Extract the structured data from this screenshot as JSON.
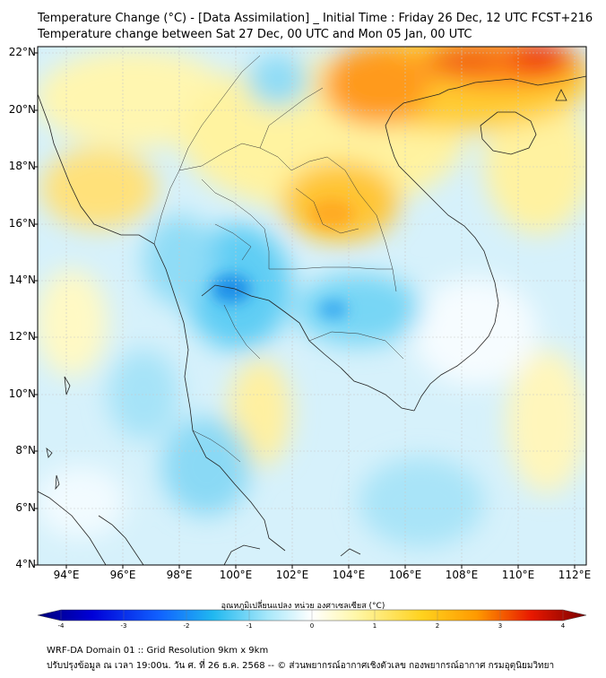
{
  "header": {
    "title_line1": "Temperature Change (°C) - [Data Assimilation] _ Initial Time : Friday 26 Dec, 12 UTC FCST+216",
    "title_line2": "Temperature change between Sat 27 Dec, 00 UTC and Mon 05 Jan, 00 UTC"
  },
  "axes": {
    "lat_labels": [
      "22°N",
      "20°N",
      "18°N",
      "16°N",
      "14°N",
      "12°N",
      "10°N",
      "8°N",
      "6°N",
      "4°N"
    ],
    "lon_labels": [
      "94°E",
      "96°E",
      "98°E",
      "100°E",
      "102°E",
      "104°E",
      "106°E",
      "108°E",
      "110°E",
      "112°E"
    ],
    "lat_values": [
      22,
      20,
      18,
      16,
      14,
      12,
      10,
      8,
      6,
      4
    ],
    "lon_values": [
      94,
      96,
      98,
      100,
      102,
      104,
      106,
      108,
      110,
      112
    ]
  },
  "colorbar": {
    "title": "อุณหภูมิเปลี่ยนแปลง หน่วย องศาเซลเซียส (°C)",
    "tick_labels": [
      "-4",
      "-3",
      "-2",
      "-1",
      "0",
      "1",
      "2",
      "3",
      "4"
    ],
    "tick_values": [
      -4,
      -3,
      -2,
      -1,
      0,
      1,
      2,
      3,
      4
    ],
    "range": [
      -4,
      4
    ],
    "colors": [
      "#00007a",
      "#0000d8",
      "#1060ff",
      "#20b8f0",
      "#a8e8fa",
      "#ffffff",
      "#fff7a8",
      "#ffd21e",
      "#ff9a00",
      "#e81800",
      "#7a0000"
    ]
  },
  "footer": {
    "line1": "WRF-DA Domain 01 :: Grid Resolution 9km x 9km",
    "line2": "ปรับปรุงข้อมูล ณ เวลา 19:00น. วัน ศ. ที่ 26 ธ.ค. 2568 -- © ส่วนพยากรณ์อากาศเชิงตัวเลข กองพยากรณ์อากาศ กรมอุตุนิยมวิทยา"
  }
}
